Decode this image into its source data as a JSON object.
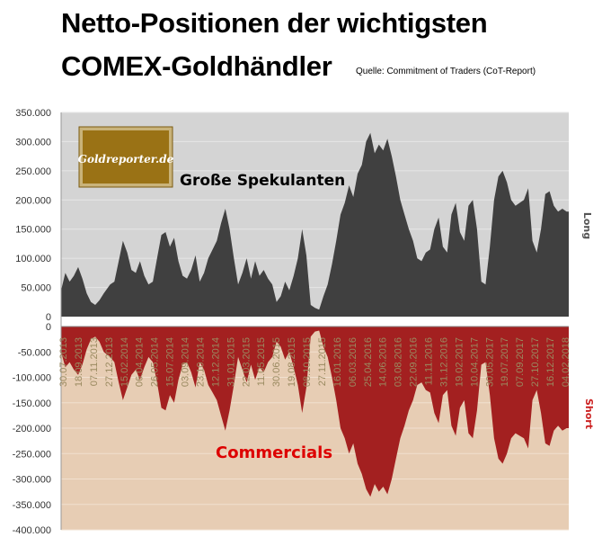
{
  "header": {
    "title_line1": "Netto-Positionen der wichtigsten",
    "title_line2": "COMEX-Goldhändler",
    "source": "Quelle: Commitment of Traders (CoT-Report)"
  },
  "logo": {
    "text": "Goldreporter.de"
  },
  "labels": {
    "speculators": "Große Spekulanten",
    "commercials": "Commercials",
    "long": "Long",
    "short": "Short"
  },
  "colors": {
    "long_bg": "#d4d4d4",
    "short_bg": "#e7cdb4",
    "speculators_fill": "#404040",
    "commercials_fill": "#a32020",
    "commercials_label": "#dd0000",
    "short_label": "#cc2222",
    "date_label": "#9a8a60",
    "logo_bg": "#9a7215"
  },
  "chart_data": {
    "type": "area",
    "ylim": [
      -400000,
      350000
    ],
    "y_ticks": [
      "350.000",
      "300.000",
      "250.000",
      "200.000",
      "150.000",
      "100.000",
      "50.000",
      "0",
      "-50.000",
      "-100.000",
      "-150.000",
      "-200.000",
      "-250.000",
      "-300.000",
      "-350.000",
      "-400.000"
    ],
    "y_tick_values": [
      350000,
      300000,
      250000,
      200000,
      150000,
      100000,
      50000,
      0,
      -50000,
      -100000,
      -150000,
      -200000,
      -250000,
      -300000,
      -350000,
      -400000
    ],
    "x_range": [
      "2013-07-30",
      "2018-02-20"
    ],
    "x_tick_labels": [
      "30.07.2013",
      "18.09.2013",
      "07.11.2013",
      "27.12.2013",
      "15.02.2014",
      "06.04.2014",
      "26.05.2014",
      "15.07.2014",
      "03.09.2014",
      "23.10.2014",
      "12.12.2014",
      "31.01.2015",
      "22.03.2015",
      "11.05.2015",
      "30.06.2015",
      "19.08.2015",
      "08.10.2015",
      "27.11.2015",
      "16.01.2016",
      "06.03.2016",
      "25.04.2016",
      "14.06.2016",
      "03.08.2016",
      "22.09.2016",
      "11.11.2016",
      "31.12.2016",
      "19.02.2017",
      "10.04.2017",
      "30.05.2017",
      "19.07.2017",
      "07.09.2017",
      "27.10.2017",
      "16.12.2017",
      "04.02.2018"
    ],
    "series": [
      {
        "name": "Große Spekulanten",
        "x": [
          "2013-07-30",
          "2013-08-13",
          "2013-08-27",
          "2013-09-10",
          "2013-09-24",
          "2013-10-08",
          "2013-10-22",
          "2013-11-05",
          "2013-11-19",
          "2013-12-03",
          "2013-12-17",
          "2014-01-07",
          "2014-01-21",
          "2014-02-04",
          "2014-02-18",
          "2014-03-04",
          "2014-03-18",
          "2014-04-01",
          "2014-04-15",
          "2014-04-29",
          "2014-05-13",
          "2014-05-27",
          "2014-06-10",
          "2014-06-24",
          "2014-07-08",
          "2014-07-22",
          "2014-08-05",
          "2014-08-19",
          "2014-09-02",
          "2014-09-16",
          "2014-09-30",
          "2014-10-14",
          "2014-10-28",
          "2014-11-11",
          "2014-11-25",
          "2014-12-09",
          "2014-12-23",
          "2015-01-06",
          "2015-01-20",
          "2015-02-03",
          "2015-02-17",
          "2015-03-03",
          "2015-03-17",
          "2015-03-31",
          "2015-04-14",
          "2015-04-28",
          "2015-05-12",
          "2015-05-26",
          "2015-06-09",
          "2015-06-23",
          "2015-07-07",
          "2015-07-21",
          "2015-08-04",
          "2015-08-18",
          "2015-09-01",
          "2015-09-15",
          "2015-09-29",
          "2015-10-13",
          "2015-10-27",
          "2015-11-10",
          "2015-11-24",
          "2015-12-08",
          "2015-12-22",
          "2016-01-05",
          "2016-01-19",
          "2016-02-02",
          "2016-02-16",
          "2016-03-01",
          "2016-03-15",
          "2016-03-29",
          "2016-04-12",
          "2016-04-26",
          "2016-05-10",
          "2016-05-24",
          "2016-06-07",
          "2016-06-21",
          "2016-07-05",
          "2016-07-19",
          "2016-08-02",
          "2016-08-16",
          "2016-08-30",
          "2016-09-13",
          "2016-09-27",
          "2016-10-11",
          "2016-10-25",
          "2016-11-08",
          "2016-11-22",
          "2016-12-06",
          "2016-12-20",
          "2017-01-03",
          "2017-01-17",
          "2017-01-31",
          "2017-02-14",
          "2017-02-28",
          "2017-03-14",
          "2017-03-28",
          "2017-04-11",
          "2017-04-25",
          "2017-05-09",
          "2017-05-23",
          "2017-06-06",
          "2017-06-20",
          "2017-07-04",
          "2017-07-18",
          "2017-08-01",
          "2017-08-15",
          "2017-08-29",
          "2017-09-12",
          "2017-09-26",
          "2017-10-10",
          "2017-10-24",
          "2017-11-07",
          "2017-11-21",
          "2017-12-05",
          "2017-12-19",
          "2018-01-02",
          "2018-01-16",
          "2018-01-30",
          "2018-02-13",
          "2018-02-20"
        ],
        "values": [
          45000,
          75000,
          60000,
          70000,
          85000,
          65000,
          40000,
          25000,
          20000,
          28000,
          40000,
          55000,
          60000,
          95000,
          130000,
          110000,
          80000,
          75000,
          95000,
          70000,
          55000,
          60000,
          100000,
          140000,
          145000,
          120000,
          135000,
          95000,
          70000,
          65000,
          80000,
          105000,
          60000,
          75000,
          100000,
          115000,
          130000,
          160000,
          185000,
          150000,
          100000,
          55000,
          75000,
          100000,
          65000,
          95000,
          70000,
          80000,
          65000,
          55000,
          25000,
          35000,
          60000,
          45000,
          70000,
          100000,
          150000,
          105000,
          20000,
          15000,
          12000,
          35000,
          55000,
          90000,
          130000,
          175000,
          195000,
          225000,
          205000,
          245000,
          260000,
          300000,
          315000,
          280000,
          295000,
          285000,
          305000,
          275000,
          240000,
          200000,
          175000,
          150000,
          130000,
          100000,
          95000,
          110000,
          115000,
          150000,
          170000,
          120000,
          110000,
          175000,
          195000,
          145000,
          130000,
          190000,
          200000,
          150000,
          60000,
          55000,
          120000,
          200000,
          240000,
          250000,
          230000,
          200000,
          190000,
          195000,
          200000,
          220000,
          130000,
          110000,
          150000,
          210000,
          215000,
          190000,
          180000,
          185000,
          180000,
          180000
        ]
      },
      {
        "name": "Commercials",
        "x": [
          "2013-07-30",
          "2013-08-13",
          "2013-08-27",
          "2013-09-10",
          "2013-09-24",
          "2013-10-08",
          "2013-10-22",
          "2013-11-05",
          "2013-11-19",
          "2013-12-03",
          "2013-12-17",
          "2014-01-07",
          "2014-01-21",
          "2014-02-04",
          "2014-02-18",
          "2014-03-04",
          "2014-03-18",
          "2014-04-01",
          "2014-04-15",
          "2014-04-29",
          "2014-05-13",
          "2014-05-27",
          "2014-06-10",
          "2014-06-24",
          "2014-07-08",
          "2014-07-22",
          "2014-08-05",
          "2014-08-19",
          "2014-09-02",
          "2014-09-16",
          "2014-09-30",
          "2014-10-14",
          "2014-10-28",
          "2014-11-11",
          "2014-11-25",
          "2014-12-09",
          "2014-12-23",
          "2015-01-06",
          "2015-01-20",
          "2015-02-03",
          "2015-02-17",
          "2015-03-03",
          "2015-03-17",
          "2015-03-31",
          "2015-04-14",
          "2015-04-28",
          "2015-05-12",
          "2015-05-26",
          "2015-06-09",
          "2015-06-23",
          "2015-07-07",
          "2015-07-21",
          "2015-08-04",
          "2015-08-18",
          "2015-09-01",
          "2015-09-15",
          "2015-09-29",
          "2015-10-13",
          "2015-10-27",
          "2015-11-10",
          "2015-11-24",
          "2015-12-08",
          "2015-12-22",
          "2016-01-05",
          "2016-01-19",
          "2016-02-02",
          "2016-02-16",
          "2016-03-01",
          "2016-03-15",
          "2016-03-29",
          "2016-04-12",
          "2016-04-26",
          "2016-05-10",
          "2016-05-24",
          "2016-06-07",
          "2016-06-21",
          "2016-07-05",
          "2016-07-19",
          "2016-08-02",
          "2016-08-16",
          "2016-08-30",
          "2016-09-13",
          "2016-09-27",
          "2016-10-11",
          "2016-10-25",
          "2016-11-08",
          "2016-11-22",
          "2016-12-06",
          "2016-12-20",
          "2017-01-03",
          "2017-01-17",
          "2017-01-31",
          "2017-02-14",
          "2017-02-28",
          "2017-03-14",
          "2017-03-28",
          "2017-04-11",
          "2017-04-25",
          "2017-05-09",
          "2017-05-23",
          "2017-06-06",
          "2017-06-20",
          "2017-07-04",
          "2017-07-18",
          "2017-08-01",
          "2017-08-15",
          "2017-08-29",
          "2017-09-12",
          "2017-09-26",
          "2017-10-10",
          "2017-10-24",
          "2017-11-07",
          "2017-11-21",
          "2017-12-05",
          "2017-12-19",
          "2018-01-02",
          "2018-01-16",
          "2018-01-30",
          "2018-02-13",
          "2018-02-20"
        ],
        "values": [
          -50000,
          -80000,
          -70000,
          -85000,
          -95000,
          -75000,
          -45000,
          -25000,
          -20000,
          -30000,
          -50000,
          -60000,
          -70000,
          -110000,
          -145000,
          -120000,
          -95000,
          -85000,
          -105000,
          -80000,
          -60000,
          -70000,
          -110000,
          -160000,
          -165000,
          -135000,
          -150000,
          -105000,
          -75000,
          -70000,
          -90000,
          -120000,
          -70000,
          -85000,
          -115000,
          -130000,
          -145000,
          -175000,
          -205000,
          -165000,
          -115000,
          -60000,
          -85000,
          -110000,
          -75000,
          -105000,
          -80000,
          -90000,
          -70000,
          -60000,
          -30000,
          -40000,
          -65000,
          -50000,
          -80000,
          -115000,
          -170000,
          -120000,
          -20000,
          -10000,
          -8000,
          -40000,
          -60000,
          -100000,
          -145000,
          -200000,
          -220000,
          -250000,
          -230000,
          -270000,
          -290000,
          -320000,
          -335000,
          -310000,
          -325000,
          -315000,
          -330000,
          -300000,
          -260000,
          -220000,
          -195000,
          -165000,
          -145000,
          -115000,
          -110000,
          -125000,
          -130000,
          -170000,
          -190000,
          -135000,
          -125000,
          -195000,
          -215000,
          -160000,
          -145000,
          -210000,
          -220000,
          -165000,
          -75000,
          -70000,
          -135000,
          -220000,
          -260000,
          -270000,
          -250000,
          -220000,
          -210000,
          -215000,
          -220000,
          -240000,
          -145000,
          -125000,
          -170000,
          -230000,
          -235000,
          -205000,
          -195000,
          -205000,
          -200000,
          -200000
        ]
      }
    ],
    "grid": true
  }
}
